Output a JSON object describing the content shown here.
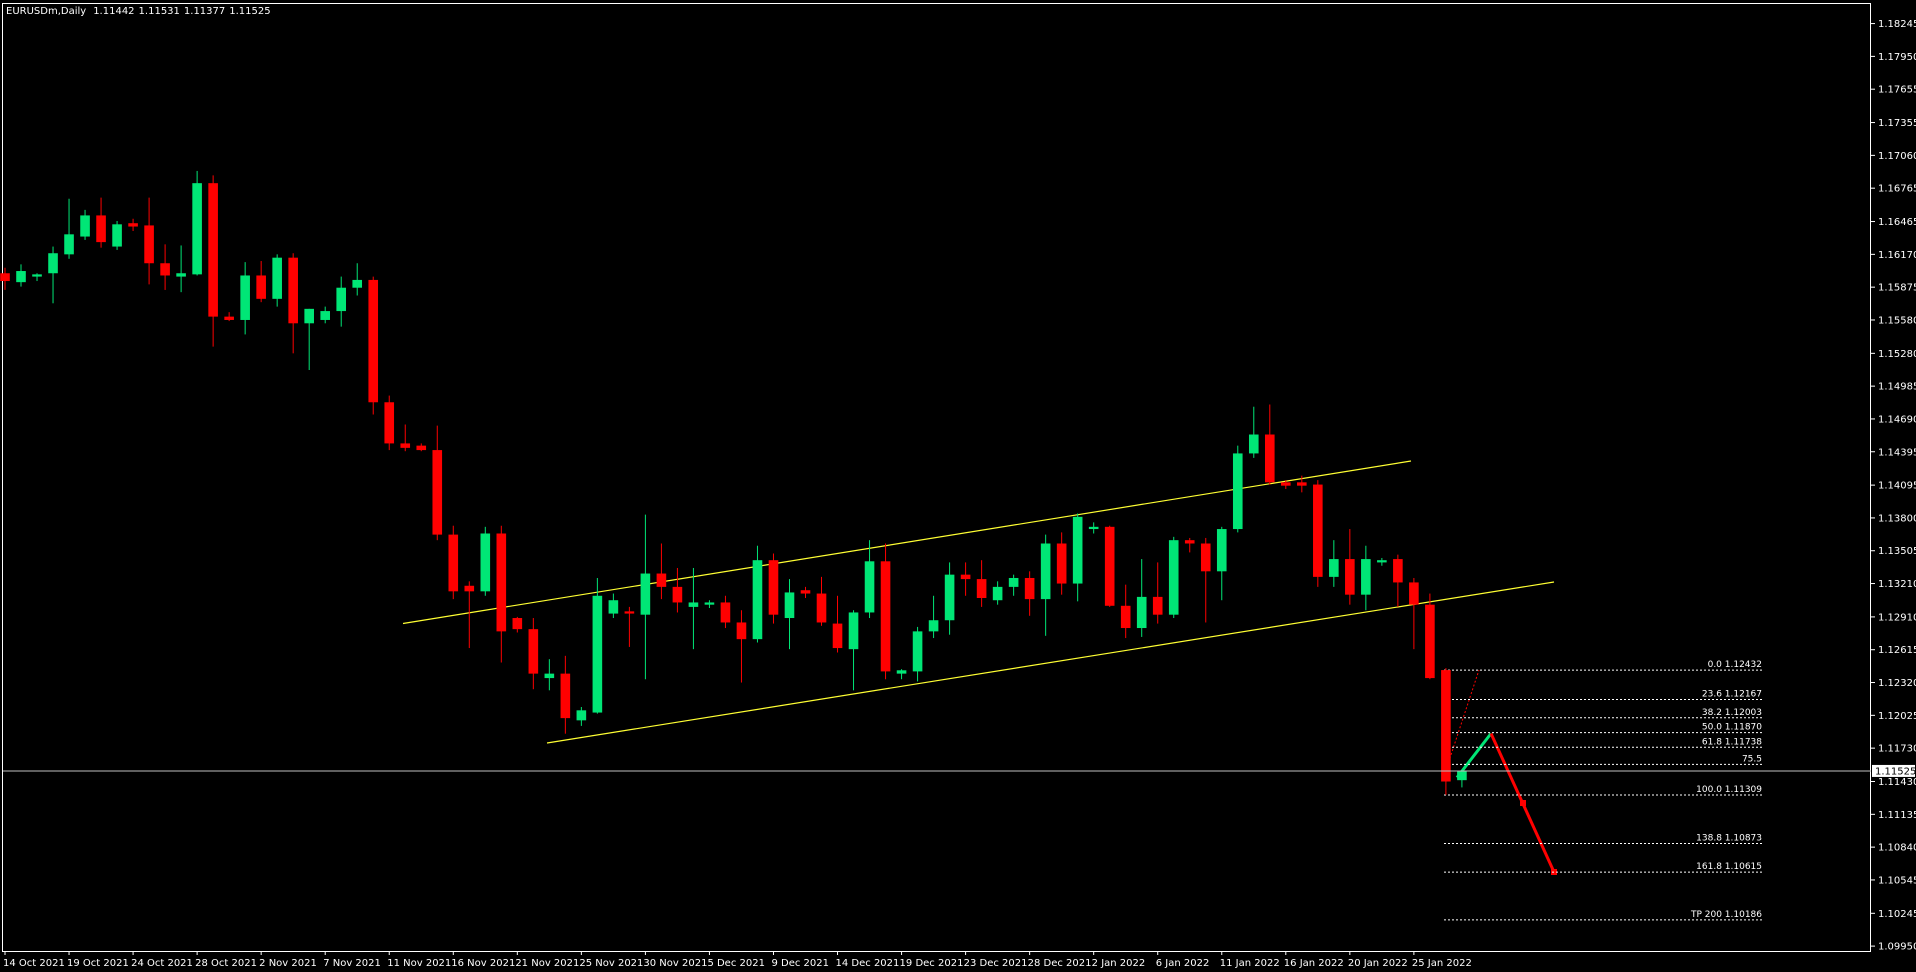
{
  "chart_data": {
    "type": "candlestick",
    "title": "EURUSDm,Daily",
    "categories": [
      "14 Oct 2021",
      null,
      null,
      null,
      "19 Oct 2021",
      null,
      null,
      null,
      "24 Oct 2021",
      null,
      null,
      null,
      "28 Oct 2021",
      null,
      null,
      null,
      "2 Nov 2021",
      null,
      null,
      null,
      "7 Nov 2021",
      null,
      null,
      null,
      "11 Nov 2021",
      null,
      null,
      null,
      "16 Nov 2021",
      null,
      null,
      null,
      "21 Nov 2021",
      null,
      null,
      null,
      "25 Nov 2021",
      null,
      null,
      null,
      "30 Nov 2021",
      null,
      null,
      null,
      "5 Dec 2021",
      null,
      null,
      null,
      "9 Dec 2021",
      null,
      null,
      null,
      "14 Dec 2021",
      null,
      null,
      null,
      "19 Dec 2021",
      null,
      null,
      null,
      "23 Dec 2021",
      null,
      null,
      null,
      "28 Dec 2021",
      null,
      null,
      null,
      "2 Jan 2022",
      null,
      null,
      null,
      "6 Jan 2022",
      null,
      null,
      null,
      "11 Jan 2022",
      null,
      null,
      null,
      "16 Jan 2022",
      null,
      null,
      null,
      "20 Jan 2022",
      null,
      null,
      null,
      "25 Jan 2022",
      null,
      null,
      null
    ],
    "open": [
      1.16,
      1.1592,
      1.1597,
      1.16,
      1.1617,
      1.1633,
      1.1652,
      1.1624,
      1.1645,
      1.1643,
      1.1609,
      1.1597,
      1.1599,
      1.1681,
      1.1561,
      1.1558,
      1.1598,
      1.1577,
      1.1614,
      1.1555,
      1.1558,
      1.1566,
      1.1587,
      1.1594,
      1.1484,
      1.1447,
      1.1445,
      1.1441,
      1.1365,
      1.1319,
      1.1314,
      1.1366,
      1.129,
      1.128,
      1.1236,
      1.124,
      1.1198,
      1.1205,
      1.1294,
      1.1296,
      1.1293,
      1.133,
      1.1318,
      1.13,
      1.1302,
      1.1304,
      1.1286,
      1.1271,
      1.1342,
      1.129,
      1.1315,
      1.1312,
      1.1285,
      1.1262,
      1.1295,
      1.1341,
      1.124,
      1.1242,
      1.1278,
      1.1288,
      1.1329,
      1.1325,
      1.1306,
      1.1318,
      1.1326,
      1.1307,
      1.1357,
      1.1321,
      1.137,
      1.1372,
      1.1301,
      1.1281,
      1.1309,
      1.1293,
      1.136,
      1.1357,
      1.1332,
      1.137,
      1.1438,
      1.1455,
      1.1412,
      1.1412,
      1.141,
      1.1327,
      1.1343,
      1.1311,
      1.134,
      1.1343,
      1.1322,
      1.1302,
      1.12432,
      1.11442
    ],
    "high": [
      1.1605,
      1.1608,
      1.16,
      1.1624,
      1.1667,
      1.1657,
      1.1668,
      1.1647,
      1.1649,
      1.1668,
      1.1626,
      1.1625,
      1.1692,
      1.1688,
      1.1565,
      1.161,
      1.1611,
      1.1617,
      1.1618,
      1.1568,
      1.157,
      1.1597,
      1.1609,
      1.1597,
      1.149,
      1.1464,
      1.1447,
      1.1463,
      1.1373,
      1.1323,
      1.1372,
      1.1373,
      1.1291,
      1.129,
      1.1253,
      1.1256,
      1.121,
      1.1326,
      1.1312,
      1.13,
      1.1383,
      1.1357,
      1.1335,
      1.1335,
      1.1306,
      1.131,
      1.1297,
      1.1355,
      1.1348,
      1.1325,
      1.1318,
      1.1327,
      1.131,
      1.1297,
      1.136,
      1.1357,
      1.1244,
      1.1282,
      1.131,
      1.134,
      1.134,
      1.1342,
      1.1323,
      1.1329,
      1.1332,
      1.1365,
      1.1367,
      1.1384,
      1.1376,
      1.1373,
      1.132,
      1.1343,
      1.134,
      1.1363,
      1.1362,
      1.1362,
      1.1372,
      1.1445,
      1.148,
      1.1482,
      1.1414,
      1.1418,
      1.1414,
      1.136,
      1.137,
      1.1355,
      1.1344,
      1.1347,
      1.1326,
      1.1312,
      1.1245,
      1.11531
    ],
    "low": [
      1.1585,
      1.1588,
      1.1593,
      1.1573,
      1.1613,
      1.163,
      1.1623,
      1.1621,
      1.1638,
      1.159,
      1.1585,
      1.1583,
      1.1598,
      1.1534,
      1.1557,
      1.1545,
      1.1574,
      1.157,
      1.1528,
      1.1513,
      1.1555,
      1.1552,
      1.158,
      1.1473,
      1.1441,
      1.144,
      1.144,
      1.136,
      1.1307,
      1.1263,
      1.131,
      1.125,
      1.1277,
      1.1226,
      1.1225,
      1.1186,
      1.1193,
      1.1204,
      1.129,
      1.1264,
      1.1235,
      1.1307,
      1.1295,
      1.1262,
      1.1299,
      1.1281,
      1.1232,
      1.1268,
      1.1285,
      1.1262,
      1.1308,
      1.1283,
      1.1259,
      1.1225,
      1.129,
      1.1235,
      1.1235,
      1.1233,
      1.1272,
      1.1275,
      1.131,
      1.13,
      1.1302,
      1.131,
      1.1292,
      1.1274,
      1.1311,
      1.1305,
      1.1366,
      1.13,
      1.1272,
      1.1273,
      1.1285,
      1.129,
      1.1349,
      1.1286,
      1.1306,
      1.1367,
      1.1434,
      1.141,
      1.1406,
      1.1403,
      1.1318,
      1.1318,
      1.1302,
      1.1297,
      1.1337,
      1.13,
      1.1262,
      1.1235,
      1.1131,
      1.11377
    ],
    "close": [
      1.1593,
      1.1602,
      1.1599,
      1.1618,
      1.1635,
      1.1652,
      1.1628,
      1.1644,
      1.1642,
      1.1609,
      1.1598,
      1.16,
      1.1681,
      1.1561,
      1.1558,
      1.1598,
      1.1577,
      1.1614,
      1.1555,
      1.1568,
      1.1566,
      1.1587,
      1.1594,
      1.1484,
      1.1447,
      1.1443,
      1.1441,
      1.1365,
      1.1314,
      1.1314,
      1.1366,
      1.1278,
      1.128,
      1.124,
      1.124,
      1.12,
      1.1207,
      1.131,
      1.1306,
      1.1294,
      1.133,
      1.1318,
      1.1304,
      1.1304,
      1.1304,
      1.1286,
      1.1271,
      1.1342,
      1.1293,
      1.1313,
      1.1312,
      1.1286,
      1.1263,
      1.1295,
      1.1341,
      1.1242,
      1.1243,
      1.1278,
      1.1288,
      1.1329,
      1.1325,
      1.1308,
      1.1318,
      1.1326,
      1.1307,
      1.1357,
      1.1321,
      1.1381,
      1.1372,
      1.1301,
      1.1281,
      1.1309,
      1.1293,
      1.136,
      1.1357,
      1.1332,
      1.137,
      1.1438,
      1.1455,
      1.1412,
      1.1409,
      1.1409,
      1.1327,
      1.1343,
      1.1311,
      1.1343,
      1.1342,
      1.1322,
      1.1302,
      1.1236,
      1.1143,
      1.11525
    ],
    "up_color": "#00e676",
    "down_color": "#ff0000",
    "ylim": [
      1.09906,
      1.18421
    ],
    "yticks": [
      1.18245,
      {
        "value": 1.1795,
        "label": "1.17950"
      },
      1.17655,
      1.17355,
      {
        "value": 1.1706,
        "label": "1.17060"
      },
      1.16765,
      1.16465,
      {
        "value": 1.1617,
        "label": "1.16170"
      },
      1.15875,
      {
        "value": 1.1558,
        "label": "1.15580"
      },
      {
        "value": 1.1528,
        "label": "1.15280"
      },
      1.14985,
      {
        "value": 1.1469,
        "label": "1.14690"
      },
      1.14395,
      1.14095,
      {
        "value": 1.138,
        "label": "1.13800"
      },
      1.13505,
      {
        "value": 1.1321,
        "label": "1.13210"
      },
      {
        "value": 1.1291,
        "label": "1.12910"
      },
      1.12615,
      {
        "value": 1.1232,
        "label": "1.12320"
      },
      1.12025,
      {
        "value": 1.1173,
        "label": "1.11730"
      },
      {
        "value": 1.1143,
        "label": "1.11430"
      },
      1.11135,
      {
        "value": 1.1084,
        "label": "1.10840"
      },
      1.10545,
      1.10245,
      {
        "value": 1.0995,
        "label": "1.09950"
      }
    ],
    "fib_levels": [
      {
        "label": "0.0 1.12432",
        "value": 1.12432
      },
      {
        "label": "23.6 1.12167",
        "value": 1.12167
      },
      {
        "label": "38.2 1.12003",
        "value": 1.12003
      },
      {
        "label": "50.0 1.11870",
        "value": 1.1187
      },
      {
        "label": "61.8 1.11738",
        "value": 1.11738
      },
      {
        "label": "75.5",
        "value": 1.11584
      },
      {
        "label": "100.0 1.11309",
        "value": 1.11309
      },
      {
        "label": "138.8 1.10873",
        "value": 1.10873
      },
      {
        "label": "161.8 1.10615",
        "value": 1.10615
      },
      {
        "label": "TP 200 1.10186",
        "value": 1.10186
      }
    ]
  }
}
